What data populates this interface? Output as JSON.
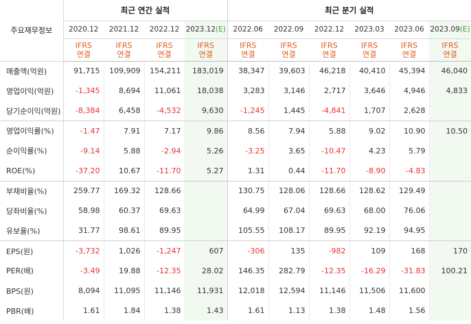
{
  "header": {
    "label": "주요재무정보",
    "annual_title": "최근 연간 실적",
    "quarterly_title": "최근 분기 실적"
  },
  "periods": [
    {
      "date": "2020.12",
      "estimate": false
    },
    {
      "date": "2021.12",
      "estimate": false
    },
    {
      "date": "2022.12",
      "estimate": false
    },
    {
      "date": "2023.12",
      "estimate": true
    },
    {
      "date": "2022.06",
      "estimate": false
    },
    {
      "date": "2022.09",
      "estimate": false
    },
    {
      "date": "2022.12",
      "estimate": false
    },
    {
      "date": "2023.03",
      "estimate": false
    },
    {
      "date": "2023.06",
      "estimate": false
    },
    {
      "date": "2023.09",
      "estimate": true
    }
  ],
  "estimate_mark": "(E)",
  "basis": {
    "line1": "IFRS",
    "line2": "연결"
  },
  "rows": [
    {
      "label": "매출액(억원)",
      "values": [
        "91,715",
        "109,909",
        "154,211",
        "183,019",
        "38,347",
        "39,603",
        "46,218",
        "40,410",
        "45,394",
        "46,040"
      ]
    },
    {
      "label": "영업이익(억원)",
      "values": [
        "-1,345",
        "8,694",
        "11,061",
        "18,038",
        "3,283",
        "3,146",
        "2,717",
        "3,646",
        "4,946",
        "4,833"
      ]
    },
    {
      "label": "당기순이익(억원)",
      "values": [
        "-8,384",
        "6,458",
        "-4,532",
        "9,630",
        "-1,245",
        "1,445",
        "-4,841",
        "1,707",
        "2,628",
        ""
      ]
    },
    {
      "label": "영업이익률(%)",
      "values": [
        "-1.47",
        "7.91",
        "7.17",
        "9.86",
        "8.56",
        "7.94",
        "5.88",
        "9.02",
        "10.90",
        "10.50"
      ]
    },
    {
      "label": "순이익률(%)",
      "values": [
        "-9.14",
        "5.88",
        "-2.94",
        "5.26",
        "-3.25",
        "3.65",
        "-10.47",
        "4.23",
        "5.79",
        ""
      ]
    },
    {
      "label": "ROE(%)",
      "values": [
        "-37.20",
        "10.67",
        "-11.70",
        "5.27",
        "1.31",
        "0.44",
        "-11.70",
        "-8.90",
        "-4.83",
        ""
      ]
    },
    {
      "label": "부채비율(%)",
      "values": [
        "259.77",
        "169.32",
        "128.66",
        "",
        "130.75",
        "128.06",
        "128.66",
        "128.62",
        "129.49",
        ""
      ]
    },
    {
      "label": "당좌비율(%)",
      "values": [
        "58.98",
        "60.37",
        "69.63",
        "",
        "64.99",
        "67.04",
        "69.63",
        "68.00",
        "76.06",
        ""
      ]
    },
    {
      "label": "유보율(%)",
      "values": [
        "31.77",
        "98.61",
        "89.95",
        "",
        "105.55",
        "108.17",
        "89.95",
        "92.19",
        "94.95",
        ""
      ]
    },
    {
      "label": "EPS(원)",
      "values": [
        "-3,732",
        "1,026",
        "-1,247",
        "607",
        "-306",
        "135",
        "-982",
        "109",
        "168",
        "170"
      ]
    },
    {
      "label": "PER(배)",
      "values": [
        "-3.49",
        "19.88",
        "-12.35",
        "28.02",
        "146.35",
        "282.79",
        "-12.35",
        "-16.29",
        "-31.83",
        "100.21"
      ]
    },
    {
      "label": "BPS(원)",
      "values": [
        "8,094",
        "11,095",
        "11,146",
        "11,931",
        "12,018",
        "12,594",
        "11,146",
        "11,506",
        "11,600",
        ""
      ]
    },
    {
      "label": "PBR(배)",
      "values": [
        "1.61",
        "1.84",
        "1.38",
        "1.43",
        "1.61",
        "1.13",
        "1.38",
        "1.48",
        "1.56",
        ""
      ]
    }
  ],
  "colors": {
    "negative": "#e8312f",
    "ifrs": "#e05a1b",
    "estimate_bg": "#f2f9f1",
    "estimate_mark": "#3c9a3c"
  }
}
